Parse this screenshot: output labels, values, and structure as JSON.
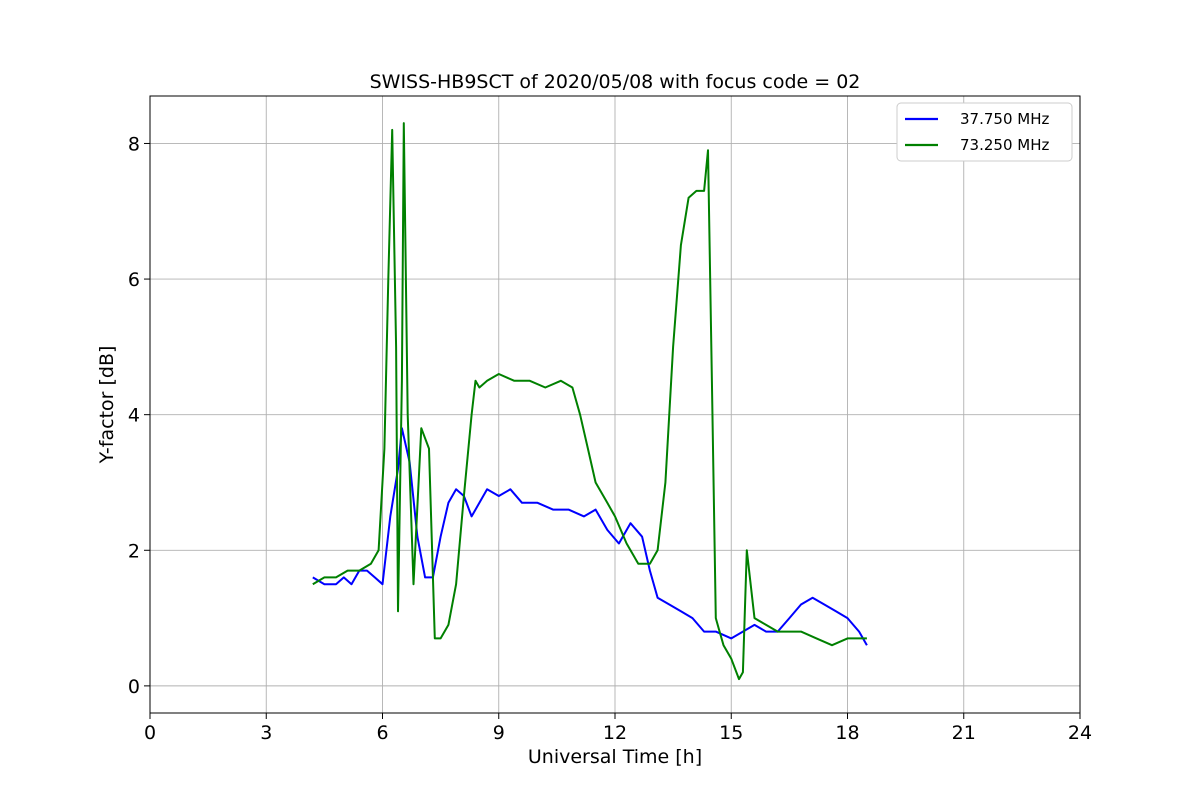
{
  "chart_data": {
    "type": "line",
    "title": "SWISS-HB9SCT of 2020/05/08 with focus code = 02",
    "xlabel": "Universal Time [h]",
    "ylabel": "Y-factor [dB]",
    "xlim": [
      0,
      24
    ],
    "ylim": [
      -0.4,
      8.7
    ],
    "xticks": [
      0,
      3,
      6,
      9,
      12,
      15,
      18,
      21,
      24
    ],
    "yticks": [
      0,
      2,
      4,
      6,
      8
    ],
    "grid": true,
    "legend_position": "top-right",
    "series": [
      {
        "name": "37.750 MHz",
        "color": "#0000ff",
        "x": [
          4.2,
          4.5,
          4.8,
          5.0,
          5.2,
          5.4,
          5.6,
          5.8,
          6.0,
          6.2,
          6.4,
          6.5,
          6.7,
          6.9,
          7.1,
          7.3,
          7.5,
          7.7,
          7.9,
          8.1,
          8.3,
          8.5,
          8.7,
          9.0,
          9.3,
          9.6,
          10.0,
          10.4,
          10.8,
          11.2,
          11.5,
          11.8,
          12.1,
          12.4,
          12.7,
          12.9,
          13.1,
          13.4,
          13.7,
          14.0,
          14.3,
          14.6,
          15.0,
          15.3,
          15.6,
          15.9,
          16.2,
          16.5,
          16.8,
          17.1,
          17.4,
          17.7,
          18.0,
          18.3,
          18.5
        ],
        "y": [
          1.6,
          1.5,
          1.5,
          1.6,
          1.5,
          1.7,
          1.7,
          1.6,
          1.5,
          2.5,
          3.2,
          3.8,
          3.3,
          2.2,
          1.6,
          1.6,
          2.2,
          2.7,
          2.9,
          2.8,
          2.5,
          2.7,
          2.9,
          2.8,
          2.9,
          2.7,
          2.7,
          2.6,
          2.6,
          2.5,
          2.6,
          2.3,
          2.1,
          2.4,
          2.2,
          1.7,
          1.3,
          1.2,
          1.1,
          1.0,
          0.8,
          0.8,
          0.7,
          0.8,
          0.9,
          0.8,
          0.8,
          1.0,
          1.2,
          1.3,
          1.2,
          1.1,
          1.0,
          0.8,
          0.6
        ]
      },
      {
        "name": "73.250 MHz",
        "color": "#008000",
        "x": [
          4.2,
          4.5,
          4.8,
          5.1,
          5.4,
          5.7,
          5.9,
          6.05,
          6.15,
          6.25,
          6.35,
          6.4,
          6.5,
          6.55,
          6.65,
          6.8,
          7.0,
          7.2,
          7.35,
          7.5,
          7.7,
          7.9,
          8.1,
          8.3,
          8.4,
          8.5,
          8.7,
          9.0,
          9.4,
          9.8,
          10.2,
          10.6,
          10.9,
          11.1,
          11.3,
          11.5,
          11.8,
          12.0,
          12.3,
          12.6,
          12.9,
          13.1,
          13.3,
          13.5,
          13.7,
          13.9,
          14.1,
          14.3,
          14.4,
          14.5,
          14.6,
          14.7,
          14.8,
          15.0,
          15.2,
          15.3,
          15.4,
          15.6,
          15.9,
          16.2,
          16.5,
          16.8,
          17.2,
          17.6,
          18.0,
          18.3,
          18.5
        ],
        "y": [
          1.5,
          1.6,
          1.6,
          1.7,
          1.7,
          1.8,
          2.0,
          3.5,
          6.0,
          8.2,
          5.0,
          1.1,
          4.5,
          8.3,
          4.0,
          1.5,
          3.8,
          3.5,
          0.7,
          0.7,
          0.9,
          1.5,
          2.8,
          4.0,
          4.5,
          4.4,
          4.5,
          4.6,
          4.5,
          4.5,
          4.4,
          4.5,
          4.4,
          4.0,
          3.5,
          3.0,
          2.7,
          2.5,
          2.1,
          1.8,
          1.8,
          2.0,
          3.0,
          5.0,
          6.5,
          7.2,
          7.3,
          7.3,
          7.9,
          4.5,
          1.0,
          0.8,
          0.6,
          0.4,
          0.1,
          0.2,
          2.0,
          1.0,
          0.9,
          0.8,
          0.8,
          0.8,
          0.7,
          0.6,
          0.7,
          0.7,
          0.7
        ]
      }
    ]
  },
  "colors": {
    "axes": "#000000",
    "grid": "#b0b0b0",
    "legend_border": "#cccccc"
  }
}
